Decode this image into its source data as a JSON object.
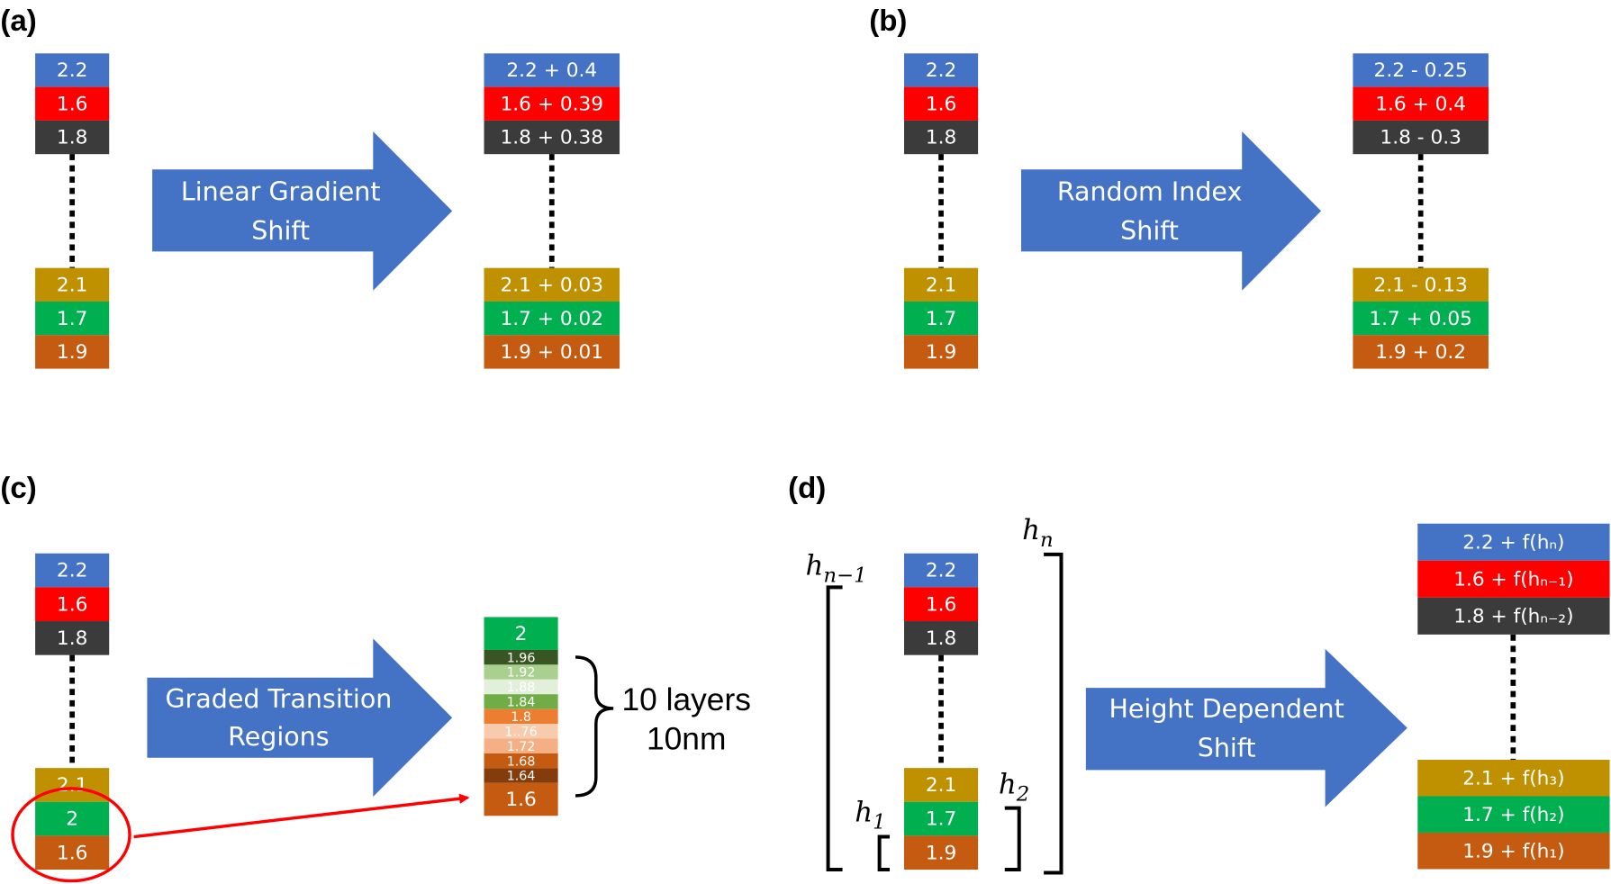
{
  "colors": {
    "blue": "#4472c4",
    "red": "#ff0000",
    "dark": "#3b3b3b",
    "gold": "#bf9000",
    "green": "#00b050",
    "orange": "#c55a11",
    "arrow": "#4472c4",
    "highlight": "#ff0000"
  },
  "panels": {
    "a": {
      "label": "(a)",
      "arrow_lines": [
        "Linear Gradient",
        "Shift"
      ],
      "before_top": [
        {
          "text": "2.2",
          "color": "blue"
        },
        {
          "text": "1.6",
          "color": "red"
        },
        {
          "text": "1.8",
          "color": "dark"
        }
      ],
      "before_bottom": [
        {
          "text": "2.1",
          "color": "gold"
        },
        {
          "text": "1.7",
          "color": "green"
        },
        {
          "text": "1.9",
          "color": "orange"
        }
      ],
      "after_top": [
        {
          "text": "2.2 + 0.4",
          "color": "blue"
        },
        {
          "text": "1.6 + 0.39",
          "color": "red"
        },
        {
          "text": "1.8 + 0.38",
          "color": "dark"
        }
      ],
      "after_bottom": [
        {
          "text": "2.1 + 0.03",
          "color": "gold"
        },
        {
          "text": "1.7 + 0.02",
          "color": "green"
        },
        {
          "text": "1.9 + 0.01",
          "color": "orange"
        }
      ]
    },
    "b": {
      "label": "(b)",
      "arrow_lines": [
        "Random Index",
        "Shift"
      ],
      "before_top": [
        {
          "text": "2.2",
          "color": "blue"
        },
        {
          "text": "1.6",
          "color": "red"
        },
        {
          "text": "1.8",
          "color": "dark"
        }
      ],
      "before_bottom": [
        {
          "text": "2.1",
          "color": "gold"
        },
        {
          "text": "1.7",
          "color": "green"
        },
        {
          "text": "1.9",
          "color": "orange"
        }
      ],
      "after_top": [
        {
          "text": "2.2 - 0.25",
          "color": "blue"
        },
        {
          "text": "1.6 + 0.4",
          "color": "red"
        },
        {
          "text": "1.8 - 0.3",
          "color": "dark"
        }
      ],
      "after_bottom": [
        {
          "text": "2.1 - 0.13",
          "color": "gold"
        },
        {
          "text": "1.7 + 0.05",
          "color": "green"
        },
        {
          "text": "1.9 + 0.2",
          "color": "orange"
        }
      ]
    },
    "c": {
      "label": "(c)",
      "arrow_lines": [
        "Graded Transition",
        "Regions"
      ],
      "before_top": [
        {
          "text": "2.2",
          "color": "blue"
        },
        {
          "text": "1.6",
          "color": "red"
        },
        {
          "text": "1.8",
          "color": "dark"
        }
      ],
      "before_bottom": [
        {
          "text": "2.1",
          "color": "gold"
        },
        {
          "text": "2",
          "color": "green"
        },
        {
          "text": "1.6",
          "color": "orange"
        }
      ],
      "graded": [
        {
          "text": "2",
          "color": "#00b050"
        },
        {
          "text": "1.96",
          "color": "#375623"
        },
        {
          "text": "1.92",
          "color": "#a9d08e"
        },
        {
          "text": "1.88",
          "color": "#e2efda"
        },
        {
          "text": "1.84",
          "color": "#70ad47"
        },
        {
          "text": "1.8",
          "color": "#ed7d31"
        },
        {
          "text": "1..76",
          "color": "#f8cbad"
        },
        {
          "text": "1.72",
          "color": "#f4b084"
        },
        {
          "text": "1.68",
          "color": "#c55a11"
        },
        {
          "text": "1.64",
          "color": "#843c0c"
        },
        {
          "text": "1.6",
          "color": "#c55a11"
        }
      ],
      "brace_lines": [
        "10 layers",
        "10nm"
      ]
    },
    "d": {
      "label": "(d)",
      "arrow_lines": [
        "Height Dependent",
        "Shift"
      ],
      "before_top": [
        {
          "text": "2.2",
          "color": "blue"
        },
        {
          "text": "1.6",
          "color": "red"
        },
        {
          "text": "1.8",
          "color": "dark"
        }
      ],
      "before_bottom": [
        {
          "text": "2.1",
          "color": "gold"
        },
        {
          "text": "1.7",
          "color": "green"
        },
        {
          "text": "1.9",
          "color": "orange"
        }
      ],
      "after_top": [
        {
          "text": "2.2 + f(hₙ)",
          "color": "blue"
        },
        {
          "text": "1.6 + f(hₙ₋₁)",
          "color": "red"
        },
        {
          "text": "1.8 + f(hₙ₋₂)",
          "color": "dark"
        }
      ],
      "after_bottom": [
        {
          "text": "2.1 + f(h₃)",
          "color": "gold"
        },
        {
          "text": "1.7 + f(h₂)",
          "color": "green"
        },
        {
          "text": "1.9 + f(h₁)",
          "color": "orange"
        }
      ],
      "height_labels": {
        "h_n_minus_1": {
          "base": "h",
          "sub": "n−1"
        },
        "h_n": {
          "base": "h",
          "sub": "n"
        },
        "h_1": {
          "base": "h",
          "sub": "1"
        },
        "h_2": {
          "base": "h",
          "sub": "2"
        }
      }
    }
  }
}
